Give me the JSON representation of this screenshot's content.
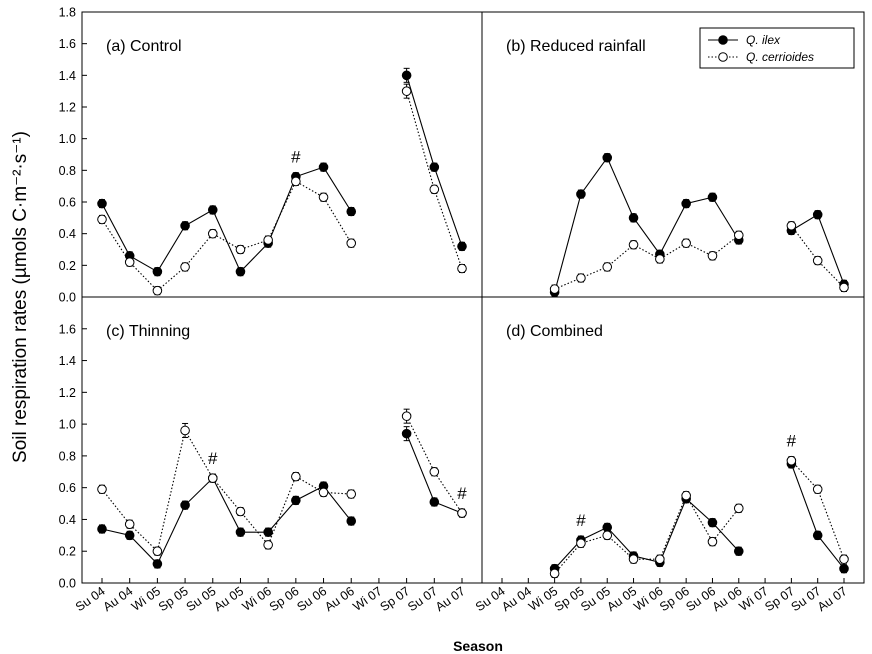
{
  "chart_data": {
    "type": "line",
    "ylabel": "Soil respiration rates (µmols C·m⁻²·s⁻¹)",
    "xlabel": "Season",
    "categories": [
      "Su 04",
      "Au 04",
      "Wi 05",
      "Sp 05",
      "Su 05",
      "Au 05",
      "Wi 06",
      "Sp 06",
      "Su 06",
      "Au 06",
      "Wi 07",
      "Sp 07",
      "Su 07",
      "Au 07"
    ],
    "y_ticks_top": [
      "0.0",
      "0.2",
      "0.4",
      "0.6",
      "0.8",
      "1.0",
      "1.2",
      "1.4",
      "1.6",
      "1.8"
    ],
    "y_ticks_bottom": [
      "0.0",
      "0.2",
      "0.4",
      "0.6",
      "0.8",
      "1.0",
      "1.2",
      "1.4",
      "1.6"
    ],
    "ylim_top": [
      0,
      1.8
    ],
    "ylim_bottom": [
      0,
      1.8
    ],
    "legend": {
      "position": "top-right of panel (b)",
      "entries": [
        {
          "name": "Q. ilex",
          "marker": "filled-circle",
          "line": "solid"
        },
        {
          "name": "Q. cerrioides",
          "marker": "open-circle",
          "line": "dotted"
        }
      ]
    },
    "panels": [
      {
        "label": "(a) Control",
        "series": [
          {
            "name": "Q. ilex",
            "values": [
              0.59,
              0.26,
              0.16,
              0.45,
              0.55,
              0.16,
              0.34,
              0.76,
              0.82,
              0.54,
              null,
              1.4,
              0.82,
              0.32
            ]
          },
          {
            "name": "Q. cerrioides",
            "values": [
              0.49,
              0.22,
              0.04,
              0.19,
              0.4,
              0.3,
              0.36,
              0.73,
              0.63,
              0.34,
              null,
              1.3,
              0.68,
              0.18
            ]
          }
        ],
        "markers": [
          {
            "label": "#",
            "category": "Sp 06"
          }
        ]
      },
      {
        "label": "(b) Reduced rainfall",
        "series": [
          {
            "name": "Q. ilex",
            "values": [
              null,
              null,
              0.03,
              0.65,
              0.88,
              0.5,
              0.27,
              0.59,
              0.63,
              0.36,
              null,
              0.42,
              0.52,
              0.08
            ]
          },
          {
            "name": "Q. cerrioides",
            "values": [
              null,
              null,
              0.05,
              0.12,
              0.19,
              0.33,
              0.24,
              0.34,
              0.26,
              0.39,
              null,
              0.45,
              0.23,
              0.06
            ]
          }
        ],
        "markers": []
      },
      {
        "label": "(c) Thinning",
        "series": [
          {
            "name": "Q. ilex",
            "values": [
              0.34,
              0.3,
              0.12,
              0.49,
              0.66,
              0.32,
              0.32,
              0.52,
              0.61,
              0.39,
              null,
              0.94,
              0.51,
              0.44
            ]
          },
          {
            "name": "Q. cerrioides",
            "values": [
              0.59,
              0.37,
              0.2,
              0.96,
              0.66,
              0.45,
              0.24,
              0.67,
              0.57,
              0.56,
              null,
              1.05,
              0.7,
              0.44
            ]
          }
        ],
        "markers": [
          {
            "label": "#",
            "category": "Su 05"
          },
          {
            "label": "#",
            "category": "Au 07"
          }
        ]
      },
      {
        "label": "(d) Combined",
        "series": [
          {
            "name": "Q. ilex",
            "values": [
              null,
              null,
              0.09,
              0.27,
              0.35,
              0.17,
              0.13,
              0.53,
              0.38,
              0.2,
              null,
              0.75,
              0.3,
              0.09
            ]
          },
          {
            "name": "Q. cerrioides",
            "values": [
              null,
              null,
              0.06,
              0.25,
              0.3,
              0.15,
              0.15,
              0.55,
              0.26,
              0.47,
              null,
              0.77,
              0.59,
              0.15
            ]
          }
        ],
        "markers": [
          {
            "label": "#",
            "category": "Sp 05"
          },
          {
            "label": "#",
            "category": "Sp 07"
          }
        ]
      }
    ]
  }
}
